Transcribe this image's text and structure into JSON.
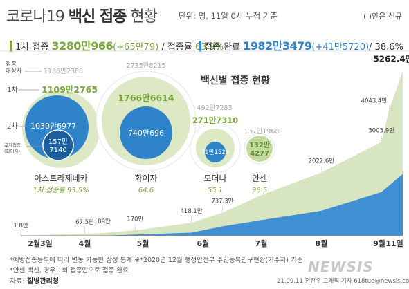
{
  "header": {
    "title_prefix": "코로나19",
    "title_bold": "백신 접종",
    "title_suffix": "현황",
    "unit_note": "단위: 명, 11일 0시 누적 기준",
    "paren_note": "( )안은 신규"
  },
  "summary": {
    "first_label": "1차 접종",
    "first_value": "3280만966",
    "first_new": "(+65만79)",
    "first_rate_label": "/ 접종률",
    "first_rate": "63.9%",
    "full_label": "접종 완료",
    "full_value": "1982만3479",
    "full_new": "(+41만5720)",
    "full_rate": "/ 38.6%"
  },
  "colors": {
    "green": "#7aa83a",
    "blue": "#2f83c9",
    "light_green": "#dce9c4",
    "area_green": "#d7e6c0",
    "area_blue": "#3f8fd2"
  },
  "bubbles": {
    "title": "백신별 접종 현황",
    "target_label": "접종\n대상자",
    "first_label": "1차",
    "second_label": "2차",
    "cross_label": "교차접종\n(화이자)",
    "items": [
      {
        "name": "아스트라제네카",
        "target": "1186만2388",
        "first": "1109만2765",
        "second": "1030만6977",
        "cross": "157만\n7140",
        "rate": "1차 접종률 93.5%"
      },
      {
        "name": "화이자",
        "target": "2735만8215",
        "first": "1766만6614",
        "second": "740만696",
        "rate": "64.6"
      },
      {
        "name": "모더나",
        "target": "492만7283",
        "first": "271만7310",
        "second": "79만1529",
        "rate": "55.1"
      },
      {
        "name": "얀센",
        "target": "137만1968",
        "first": "132만\n4277",
        "rate": "96.5"
      }
    ]
  },
  "chart_data": {
    "type": "area",
    "title": "",
    "xlabel": "",
    "ylabel": "",
    "x_ticks": [
      "2월3일",
      "4월",
      "5월",
      "6월",
      "7월",
      "8월",
      "9월",
      "11일"
    ],
    "grid": false,
    "series": [
      {
        "name": "1차 접종",
        "points": [
          {
            "date": "02-26",
            "value": 1.8
          },
          {
            "date": "03-31",
            "value": 67.5
          },
          {
            "date": "04-10",
            "value": 89
          },
          {
            "date": "04-26",
            "value": 170
          },
          {
            "date": "05-25",
            "value": 418.1
          },
          {
            "date": "06-10",
            "value": 737.3
          },
          {
            "date": "06-30",
            "value": 1300
          },
          {
            "date": "07-31",
            "value": 2022.6
          },
          {
            "date": "08-31",
            "value": 3003.9
          },
          {
            "date": "09-04",
            "value": 4043.4
          },
          {
            "date": "09-11",
            "value": 5262.4
          }
        ],
        "labels": [
          "1.8만",
          "67.5만",
          "89만",
          "170만",
          "418.1만",
          "737.3만",
          "2022.6만",
          "3003.9만",
          "4043.4만",
          "5262.4만"
        ]
      },
      {
        "name": "접종 완료",
        "points": [
          {
            "date": "02-26",
            "value": 0
          },
          {
            "date": "04-10",
            "value": 5
          },
          {
            "date": "05-25",
            "value": 100
          },
          {
            "date": "06-10",
            "value": 300
          },
          {
            "date": "06-30",
            "value": 500
          },
          {
            "date": "07-31",
            "value": 800
          },
          {
            "date": "08-31",
            "value": 1400
          },
          {
            "date": "09-11",
            "value": 1982
          }
        ]
      }
    ]
  },
  "footer": {
    "note1": "*예방접종등록에 따라 변동 가능한 잠정 통계 ※*2020년 12월 행정안전부 주민등록인구현황(거주자) 기준",
    "note2": "*얀센 백신, 경우 1회 접종만으로 접종 완료",
    "source_label": "자료:",
    "source": "질병관리청",
    "credit": "21.09.11 전진우 그래픽  기자 618tue@newsis.com",
    "logo": "NEWSIS"
  }
}
